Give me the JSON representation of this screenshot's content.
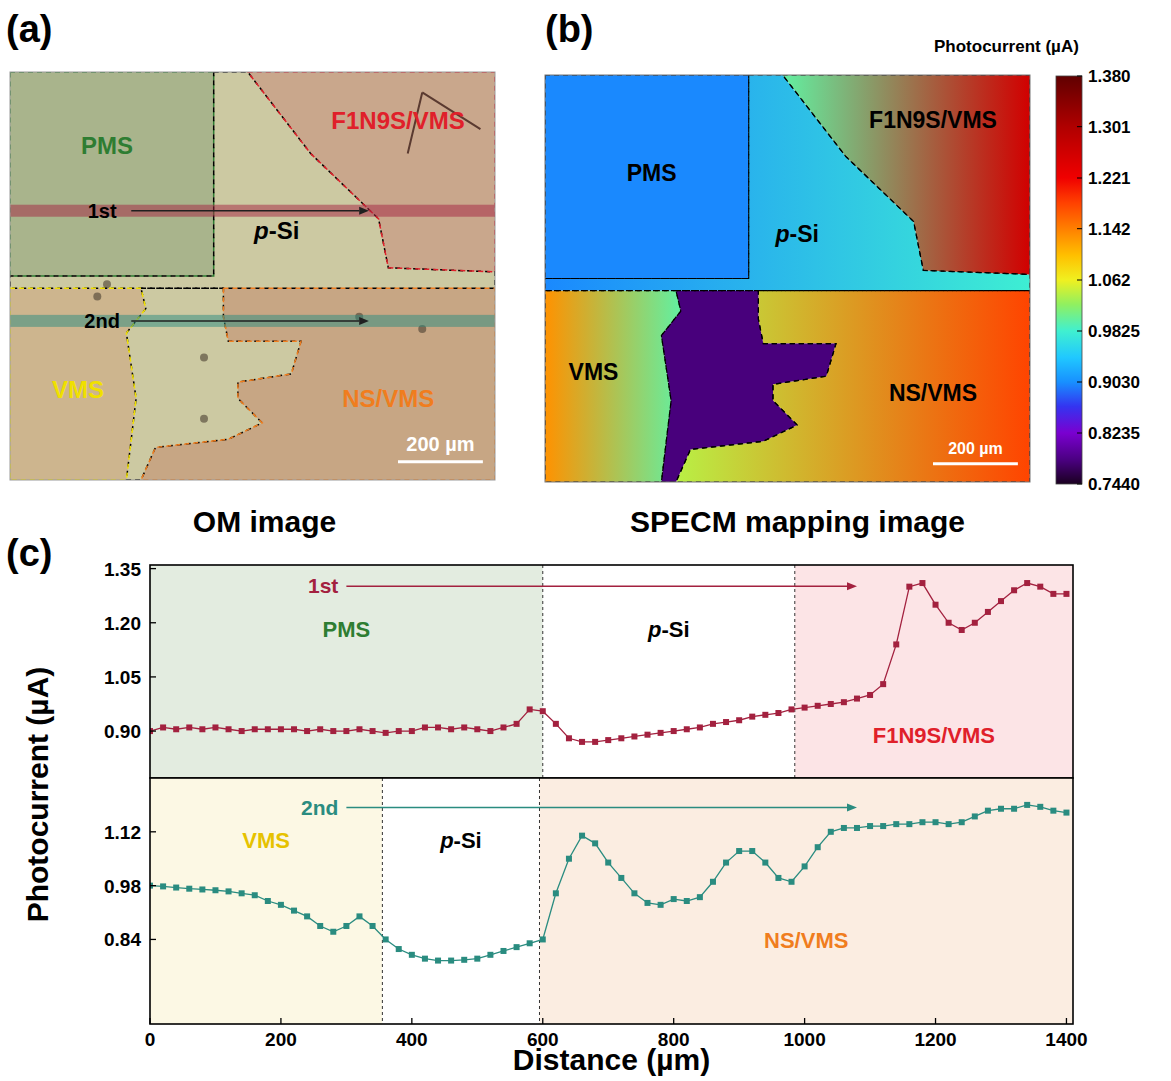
{
  "chart_data": [
    {
      "type": "image",
      "panel_label": "(a)",
      "title": "OM image",
      "scale_bar": "200 µm",
      "regions": [
        {
          "label": "PMS",
          "color": "#2e7d32"
        },
        {
          "label": "p-Si",
          "color": "#000000"
        },
        {
          "label": "F1N9S/VMS",
          "color": "#e0202a"
        },
        {
          "label": "VMS",
          "color": "#f0e000"
        },
        {
          "label": "NS/VMS",
          "color": "#f07d1e"
        }
      ]
    },
    {
      "type": "heatmap",
      "panel_label": "(b)",
      "title": "SPECM mapping image",
      "scale_bar": "200 µm",
      "colorbar_label": "Photocurrent (µA)",
      "colorbar_lim": [
        0.744,
        1.38
      ],
      "colorbar_ticks": [
        {
          "value": 0.744,
          "label": "0.7440"
        },
        0.8235,
        {
          "value": 0.903,
          "label": "0.9030"
        },
        0.9825,
        1.062,
        1.142,
        1.221,
        1.301,
        {
          "value": 1.38,
          "label": "1.380"
        }
      ],
      "regions": [
        {
          "label": "PMS",
          "values": [
            0.9,
            0.9
          ]
        },
        {
          "label": "p-Si",
          "values": [
            0.9,
            0.98
          ]
        },
        {
          "label": "F1N9S/VMS",
          "values": [
            1.0,
            1.26
          ]
        },
        {
          "label": "VMS",
          "values": [
            1.13,
            1.0
          ]
        },
        {
          "label": "NS/VMS",
          "values": [
            1.04,
            1.18
          ]
        },
        {
          "label": null,
          "values": [
            0.78,
            0.78
          ]
        }
      ]
    },
    {
      "type": "line",
      "panel_label": "(c)",
      "y_label": "Photocurrent (µA)",
      "tick_labels": "y",
      "xlim": [
        0,
        1410
      ],
      "ylim": [
        0.77,
        1.36
      ],
      "yticks": [
        {
          "value": 0.9,
          "label": "0.90"
        },
        1.05,
        {
          "value": 1.2,
          "label": "1.20"
        },
        1.35
      ],
      "arrow_x": [
        300,
        1080
      ],
      "regions": [
        {
          "label": "PMS",
          "x0": 0,
          "x1": 600,
          "color": "#e3ece0"
        },
        {
          "label": "p-Si",
          "x0": 600,
          "x1": 985,
          "color": "#ffffff"
        },
        {
          "label": "F1N9S/VMS",
          "x0": 985,
          "x1": 1410,
          "color": "#fce4e6"
        }
      ],
      "x": [
        0,
        20,
        40,
        60,
        80,
        100,
        120,
        140,
        160,
        180,
        200,
        220,
        240,
        260,
        280,
        300,
        320,
        340,
        360,
        380,
        400,
        420,
        440,
        460,
        480,
        500,
        520,
        540,
        560,
        580,
        600,
        620,
        640,
        660,
        680,
        700,
        720,
        740,
        760,
        780,
        800,
        820,
        840,
        860,
        880,
        900,
        920,
        940,
        960,
        980,
        1000,
        1020,
        1040,
        1060,
        1080,
        1100,
        1120,
        1140,
        1160,
        1180,
        1200,
        1220,
        1240,
        1260,
        1280,
        1300,
        1320,
        1340,
        1360,
        1380,
        1400
      ],
      "series": [
        {
          "name": "1st",
          "color": "#a3213f",
          "marker": "square",
          "values": [
            0.9,
            0.91,
            0.905,
            0.91,
            0.905,
            0.91,
            0.905,
            0.9,
            0.905,
            0.905,
            0.905,
            0.905,
            0.9,
            0.905,
            0.9,
            0.9,
            0.905,
            0.9,
            0.895,
            0.9,
            0.9,
            0.91,
            0.91,
            0.905,
            0.91,
            0.905,
            0.9,
            0.91,
            0.92,
            0.96,
            0.955,
            0.92,
            0.88,
            0.87,
            0.87,
            0.875,
            0.88,
            0.885,
            0.89,
            0.895,
            0.9,
            0.905,
            0.91,
            0.92,
            0.925,
            0.93,
            0.94,
            0.945,
            0.95,
            0.96,
            0.965,
            0.97,
            0.975,
            0.98,
            0.99,
            1.0,
            1.03,
            1.14,
            1.3,
            1.31,
            1.25,
            1.2,
            1.18,
            1.2,
            1.23,
            1.26,
            1.29,
            1.31,
            1.3,
            1.28,
            1.28
          ]
        }
      ]
    },
    {
      "type": "line",
      "x_label": "Distance (µm)",
      "xlim": [
        0,
        1410
      ],
      "ylim": [
        0.62,
        1.26
      ],
      "xticks": [
        0,
        200,
        400,
        600,
        800,
        1000,
        1200,
        1400
      ],
      "yticks": [
        0.84,
        0.98,
        1.12
      ],
      "arrow_x": [
        300,
        1080
      ],
      "regions": [
        {
          "label": "VMS",
          "x0": 0,
          "x1": 355,
          "color": "#fcf8e4"
        },
        {
          "label": "p-Si",
          "x0": 355,
          "x1": 595,
          "color": "#ffffff"
        },
        {
          "label": "NS/VMS",
          "x0": 595,
          "x1": 1410,
          "color": "#fbede1"
        }
      ],
      "x": [
        0,
        20,
        40,
        60,
        80,
        100,
        120,
        140,
        160,
        180,
        200,
        220,
        240,
        260,
        280,
        300,
        320,
        340,
        360,
        380,
        400,
        420,
        440,
        460,
        480,
        500,
        520,
        540,
        560,
        580,
        600,
        620,
        640,
        660,
        680,
        700,
        720,
        740,
        760,
        780,
        800,
        820,
        840,
        860,
        880,
        900,
        920,
        940,
        960,
        980,
        1000,
        1020,
        1040,
        1060,
        1080,
        1100,
        1120,
        1140,
        1160,
        1180,
        1200,
        1220,
        1240,
        1260,
        1280,
        1300,
        1320,
        1340,
        1360,
        1380,
        1400
      ],
      "series": [
        {
          "name": "2nd",
          "color": "#2a8c80",
          "marker": "square",
          "values": [
            0.98,
            0.978,
            0.975,
            0.972,
            0.97,
            0.968,
            0.965,
            0.96,
            0.955,
            0.94,
            0.93,
            0.915,
            0.9,
            0.875,
            0.86,
            0.875,
            0.9,
            0.875,
            0.84,
            0.815,
            0.8,
            0.79,
            0.785,
            0.785,
            0.787,
            0.79,
            0.8,
            0.81,
            0.82,
            0.83,
            0.84,
            0.96,
            1.05,
            1.11,
            1.09,
            1.04,
            1.0,
            0.96,
            0.935,
            0.93,
            0.945,
            0.94,
            0.95,
            0.99,
            1.04,
            1.07,
            1.07,
            1.04,
            1.0,
            0.99,
            1.03,
            1.08,
            1.12,
            1.13,
            1.13,
            1.135,
            1.135,
            1.14,
            1.14,
            1.145,
            1.145,
            1.14,
            1.145,
            1.16,
            1.175,
            1.18,
            1.18,
            1.19,
            1.185,
            1.175,
            1.17
          ]
        }
      ]
    }
  ]
}
